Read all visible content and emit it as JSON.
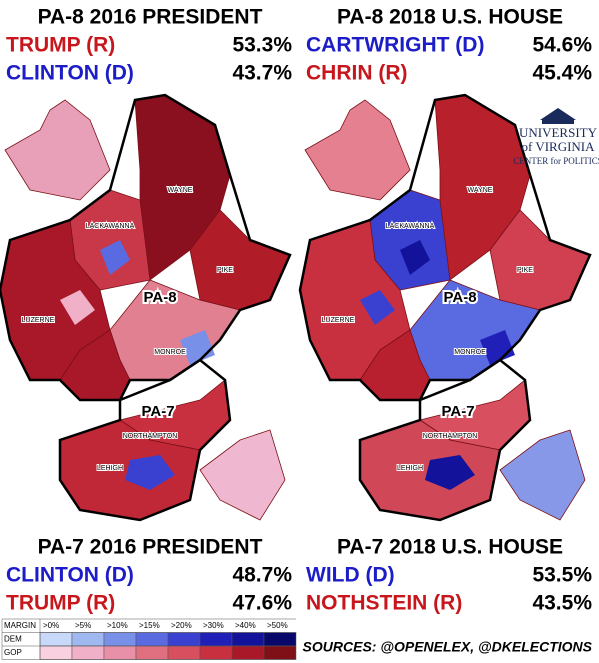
{
  "panels": [
    {
      "title": "PA-8 2016 PRESIDENT",
      "rows": [
        {
          "name": "TRUMP (R)",
          "pct": "53.3%",
          "color": "#c8161d"
        },
        {
          "name": "CLINTON (D)",
          "pct": "43.7%",
          "color": "#1c1cc8"
        }
      ]
    },
    {
      "title": "PA-8 2018 U.S. HOUSE",
      "rows": [
        {
          "name": "CARTWRIGHT (D)",
          "pct": "54.6%",
          "color": "#1c1cc8"
        },
        {
          "name": "CHRIN (R)",
          "pct": "45.4%",
          "color": "#c8161d"
        }
      ]
    },
    {
      "title": "PA-7 2016 PRESIDENT",
      "rows": [
        {
          "name": "CLINTON (D)",
          "pct": "48.7%",
          "color": "#1c1cc8"
        },
        {
          "name": "TRUMP (R)",
          "pct": "47.6%",
          "color": "#c8161d"
        }
      ]
    },
    {
      "title": "PA-7 2018 U.S. HOUSE",
      "rows": [
        {
          "name": "WILD (D)",
          "pct": "53.5%",
          "color": "#1c1cc8"
        },
        {
          "name": "NOTHSTEIN (R)",
          "pct": "43.5%",
          "color": "#c8161d"
        }
      ]
    }
  ],
  "map_labels": [
    "LACKAWANNA",
    "WAYNE",
    "PIKE",
    "LUZERNE",
    "MONROE",
    "NORTHAMPTON",
    "LEHIGH"
  ],
  "district_labels": [
    "PA-8",
    "PA-7"
  ],
  "logo": {
    "line1": "UNIVERSITY",
    "line2": "of VIRGINIA",
    "line3": "CENTER for POLITICS"
  },
  "legend": {
    "header": "MARGIN",
    "bins": [
      ">0%",
      ">5%",
      ">10%",
      ">15%",
      ">20%",
      ">30%",
      ">40%",
      ">50%"
    ],
    "rows": [
      "DEM",
      "GOP"
    ]
  },
  "sources": "SOURCES: @OPENELEX, @DKELECTIONS"
}
